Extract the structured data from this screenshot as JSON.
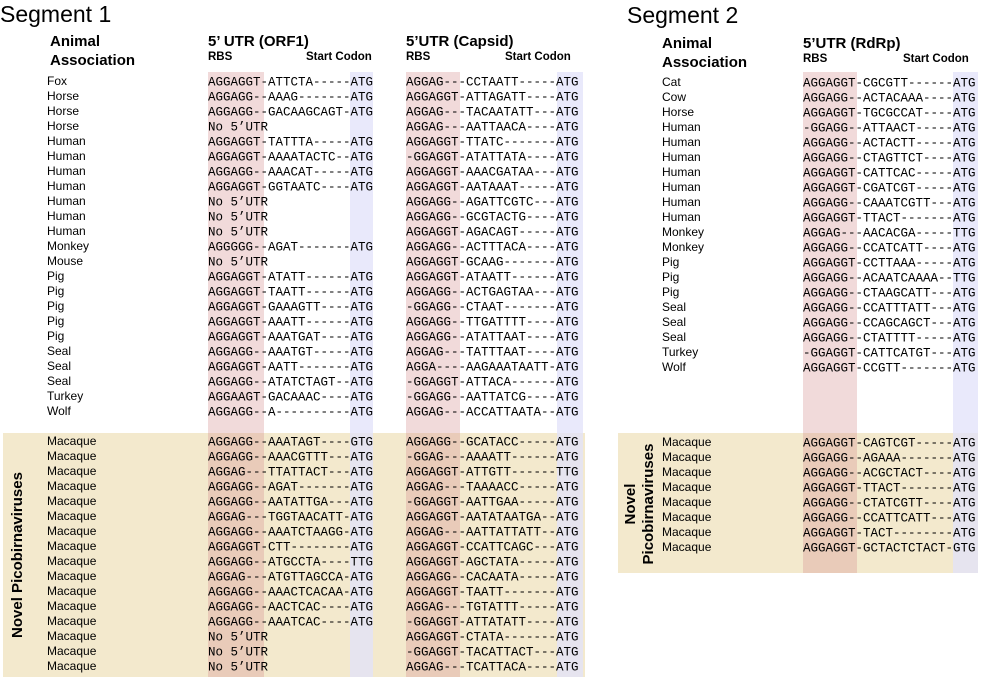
{
  "segments": [
    {
      "title": "Segment 1",
      "animal_header": [
        "Animal",
        "Association"
      ],
      "columns": [
        {
          "title": "5’ UTR (ORF1)",
          "rbs": "RBS",
          "start": "Start Codon"
        },
        {
          "title": "5’UTR (Capsid)",
          "rbs": "RBS",
          "start": "Start Codon"
        }
      ],
      "rows": [
        {
          "animal": "Fox",
          "seqs": [
            "AGGAGGT-ATTCTA-----ATG",
            "AGGAG---CCTAATT-----ATG"
          ]
        },
        {
          "animal": "Horse",
          "seqs": [
            "AGGAGG--AAAG-------ATG",
            "AGGAGGT-ATTAGATT----ATG"
          ]
        },
        {
          "animal": "Horse",
          "seqs": [
            "AGGAGG--GACAAGCAGT-ATG",
            "AGGAG---TACAATATT---ATG"
          ]
        },
        {
          "animal": "Horse",
          "seqs": [
            "No 5’UTR",
            "AGGAG---AATTAACA----ATG"
          ]
        },
        {
          "animal": "Human",
          "seqs": [
            "AGGAGGT-TATTTA-----ATG",
            "AGGAGGT-TTATC-------ATG"
          ]
        },
        {
          "animal": "Human",
          "seqs": [
            "AGGAGGT-AAAATACTC--ATG",
            "-GGAGGT-ATATTATA----ATG"
          ]
        },
        {
          "animal": "Human",
          "seqs": [
            "AGGAGG--AAACAT-----ATG",
            "AGGAGGT-AAACGATAA---ATG"
          ]
        },
        {
          "animal": "Human",
          "seqs": [
            "AGGAGGT-GGTAATC----ATG",
            "AGGAGGT-AATAAAT-----ATG"
          ]
        },
        {
          "animal": "Human",
          "seqs": [
            "No 5’UTR",
            "AGGAGG--AGATTCGTC---ATG"
          ]
        },
        {
          "animal": "Human",
          "seqs": [
            "No 5’UTR",
            "AGGAGG--GCGTACTG----ATG"
          ]
        },
        {
          "animal": "Human",
          "seqs": [
            "No 5’UTR",
            "AGGAGGT-AGACAGT-----ATG"
          ]
        },
        {
          "animal": "Monkey",
          "seqs": [
            "AGGGGG--AGAT-------ATG",
            "AGGAGG--ACTTTACA----ATG"
          ]
        },
        {
          "animal": "Mouse",
          "seqs": [
            "No 5’UTR",
            "AGGAGGT-GCAAG-------ATG"
          ]
        },
        {
          "animal": "Pig",
          "seqs": [
            "AGGAGGT-ATATT------ATG",
            "AGGAGGT-ATAATT------ATG"
          ]
        },
        {
          "animal": "Pig",
          "seqs": [
            "AGGAGGT-TAATT------ATG",
            "AGGAGG--ACTGAGTAA---ATG"
          ]
        },
        {
          "animal": "Pig",
          "seqs": [
            "AGGAGGT-GAAAGTT----ATG",
            "-GGAGG--CTAAT-------ATG"
          ]
        },
        {
          "animal": "Pig",
          "seqs": [
            "AGGAGGT-AAATT------ATG",
            "AGGAGG--TTGATTTT----ATG"
          ]
        },
        {
          "animal": "Pig",
          "seqs": [
            "AGGAGGT-AAATGAT----ATG",
            "AGGAGG--ATATTAAT----ATG"
          ]
        },
        {
          "animal": "Seal",
          "seqs": [
            "AGGAGG--AAATGT-----ATG",
            "AGGAG---TATTTAAT----ATG"
          ]
        },
        {
          "animal": "Seal",
          "seqs": [
            "AGGAGGT-AATT-------ATG",
            "AGGA----AAGAAATAATT-ATG"
          ]
        },
        {
          "animal": "Seal",
          "seqs": [
            "AGGAGG--ATATCTAGT--ATG",
            "-GGAGGT-ATTACA------ATG"
          ]
        },
        {
          "animal": "Turkey",
          "seqs": [
            "AGGAAGT-GACAAAC----ATG",
            "-GGAGG--AATTATCG----ATG"
          ]
        },
        {
          "animal": "Wolf",
          "seqs": [
            "AGGAGG--A----------ATG",
            "AGGAG---ACCATTAATA--ATG"
          ]
        }
      ],
      "novel": {
        "label": [
          "Novel Picobirnaviruses"
        ],
        "rows": [
          {
            "animal": "Macaque",
            "seqs": [
              "AGGAGG--AAATAGT----GTG",
              "AGGAGG--GCATACC-----ATG"
            ]
          },
          {
            "animal": "Macaque",
            "seqs": [
              "AGGAGG--AAACGTTT---ATG",
              "-GGAG---AAAATT------ATG"
            ]
          },
          {
            "animal": "Macaque",
            "seqs": [
              "AGGAG---TTATTACT---ATG",
              "AGGAGGT-ATTGTT------TTG"
            ]
          },
          {
            "animal": "Macaque",
            "seqs": [
              "AGGAGG--AGAT-------ATG",
              "AGGAG---TAAAACC-----ATG"
            ]
          },
          {
            "animal": "Macaque",
            "seqs": [
              "AGGAGG--AATATTGA---ATG",
              "-GGAGGT-AATTGAA-----ATG"
            ]
          },
          {
            "animal": "Macaque",
            "seqs": [
              "AGGAG---TGGTAACATT-ATG",
              "AGGAGGT-AATATAATGA--ATG"
            ]
          },
          {
            "animal": "Macaque",
            "seqs": [
              "AGGAGG--AAATCTAAGG-ATG",
              "AGGAG---AATTATTATT--ATG"
            ]
          },
          {
            "animal": "Macaque",
            "seqs": [
              "AGGAGGT-CTT--------ATG",
              "AGGAGGT-CCATTCAGC---ATG"
            ]
          },
          {
            "animal": "Macaque",
            "seqs": [
              "AGGAGG--ATGCCTA----TTG",
              "AGGAGGT-AGCTATA-----ATG"
            ]
          },
          {
            "animal": "Macaque",
            "seqs": [
              "AGGAG---ATGTTAGCCA-ATG",
              "AGGAGG--CACAATA-----ATG"
            ]
          },
          {
            "animal": "Macaque",
            "seqs": [
              "AGGAGG--AAACTCACAA-ATG",
              "AGGAGGT-TAATT-------ATG"
            ]
          },
          {
            "animal": "Macaque",
            "seqs": [
              "AGGAGG--AACTCAC----ATG",
              "AGGAG---TGTATTT-----ATG"
            ]
          },
          {
            "animal": "Macaque",
            "seqs": [
              "AGGAGG--AAATCAC----ATG",
              "-GGAGGT-ATTATATT----ATG"
            ]
          },
          {
            "animal": "Macaque",
            "seqs": [
              "No 5’UTR",
              "AGGAGGT-CTATA-------ATG"
            ]
          },
          {
            "animal": "Macaque",
            "seqs": [
              "No 5’UTR",
              "-GGAGGT-TACATTACT---ATG"
            ]
          },
          {
            "animal": "Macaque",
            "seqs": [
              "No 5’UTR",
              "AGGAG---TCATTACA----ATG"
            ]
          }
        ]
      }
    },
    {
      "title": "Segment 2",
      "animal_header": [
        "Animal",
        "Association"
      ],
      "columns": [
        {
          "title": "5’UTR (RdRp)",
          "rbs": "RBS",
          "start": "Start Codon"
        }
      ],
      "rows": [
        {
          "animal": "Cat",
          "seqs": [
            "AGGAGGT-CGCGTT------ATG"
          ]
        },
        {
          "animal": "Cow",
          "seqs": [
            "AGGAGG--ACTACAAA----ATG"
          ]
        },
        {
          "animal": "Horse",
          "seqs": [
            "AGGAGGT-TGCGCCAT----ATG"
          ]
        },
        {
          "animal": "Human",
          "seqs": [
            "-GGAGG--ATTAACT-----ATG"
          ]
        },
        {
          "animal": "Human",
          "seqs": [
            "AGGAGG--ACTACTT-----ATG"
          ]
        },
        {
          "animal": "Human",
          "seqs": [
            "AGGAGG--CTAGTTCT----ATG"
          ]
        },
        {
          "animal": "Human",
          "seqs": [
            "AGGAGGT-CATTCAC-----ATG"
          ]
        },
        {
          "animal": "Human",
          "seqs": [
            "AGGAGGT-CGATCGT-----ATG"
          ]
        },
        {
          "animal": "Human",
          "seqs": [
            "AGGAGG--CAAATCGTT---ATG"
          ]
        },
        {
          "animal": "Human",
          "seqs": [
            "AGGAGGT-TTACT-------ATG"
          ]
        },
        {
          "animal": "Monkey",
          "seqs": [
            "AGGAG---AACACGA-----TTG"
          ]
        },
        {
          "animal": "Monkey",
          "seqs": [
            "AGGAGG--CCATCATT----ATG"
          ]
        },
        {
          "animal": "Pig",
          "seqs": [
            "AGGAGGT-CCTTAAA-----ATG"
          ]
        },
        {
          "animal": "Pig",
          "seqs": [
            "AGGAGG--ACAATCAAAA--TTG"
          ]
        },
        {
          "animal": "Pig",
          "seqs": [
            "AGGAGG--CTAAGCATT---ATG"
          ]
        },
        {
          "animal": "Seal",
          "seqs": [
            "AGGAGG--CCATTTATT---ATG"
          ]
        },
        {
          "animal": "Seal",
          "seqs": [
            "AGGAGG--CCAGCAGCT---ATG"
          ]
        },
        {
          "animal": "Seal",
          "seqs": [
            "AGGAGG--CTATTTT-----ATG"
          ]
        },
        {
          "animal": "Turkey",
          "seqs": [
            "-GGAGGT-CATTCATGT---ATG"
          ]
        },
        {
          "animal": "Wolf",
          "seqs": [
            "AGGAGGT-CCGTT-------ATG"
          ]
        }
      ],
      "novel": {
        "label": [
          "Novel",
          "Picobirnaviruses"
        ],
        "rows": [
          {
            "animal": "Macaque",
            "seqs": [
              "AGGAGGT-CAGTCGT-----ATG"
            ]
          },
          {
            "animal": "Macaque",
            "seqs": [
              "AGGAGG--AGAAA-------ATG"
            ]
          },
          {
            "animal": "Macaque",
            "seqs": [
              "AGGAGG--ACGCTACT----ATG"
            ]
          },
          {
            "animal": "Macaque",
            "seqs": [
              "AGGAGGT-TTACT-------ATG"
            ]
          },
          {
            "animal": "Macaque",
            "seqs": [
              "AGGAGG--CTATCGTT----ATG"
            ]
          },
          {
            "animal": "Macaque",
            "seqs": [
              "AGGAGG--CCATTCATT---ATG"
            ]
          },
          {
            "animal": "Macaque",
            "seqs": [
              "AGGAGGT-TACT--------ATG"
            ]
          },
          {
            "animal": "Macaque",
            "seqs": [
              "AGGAGGT-GCTACTCTACT-GTG"
            ]
          }
        ]
      }
    }
  ]
}
